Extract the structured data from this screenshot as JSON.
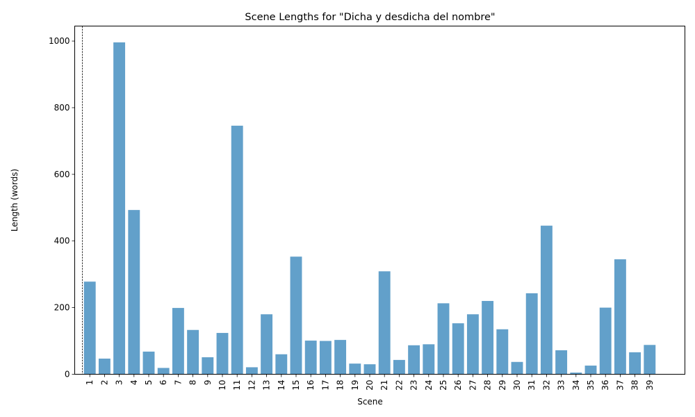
{
  "chart_data": {
    "type": "bar",
    "title": "Scene Lengths for \"Dicha y desdicha del nombre\"",
    "xlabel": "Scene",
    "ylabel": "Length (words)",
    "ylim": [
      0,
      1045
    ],
    "yticks": [
      0,
      200,
      400,
      600,
      800,
      1000
    ],
    "bar_color": "#1f77b4",
    "bar_opacity": 0.7,
    "grid": false,
    "reference_line_style": "dashed-vertical",
    "categories": [
      "1",
      "2",
      "3",
      "4",
      "5",
      "6",
      "7",
      "8",
      "9",
      "10",
      "11",
      "12",
      "13",
      "14",
      "15",
      "16",
      "17",
      "18",
      "19",
      "20",
      "21",
      "22",
      "23",
      "24",
      "25",
      "26",
      "27",
      "28",
      "29",
      "30",
      "31",
      "32",
      "33",
      "34",
      "35",
      "36",
      "37",
      "38",
      "39"
    ],
    "values": [
      278,
      47,
      996,
      493,
      68,
      19,
      199,
      133,
      51,
      124,
      746,
      21,
      180,
      60,
      353,
      101,
      100,
      103,
      32,
      30,
      309,
      43,
      87,
      90,
      213,
      153,
      180,
      220,
      135,
      37,
      243,
      446,
      72,
      5,
      26,
      200,
      345,
      66,
      88
    ]
  }
}
